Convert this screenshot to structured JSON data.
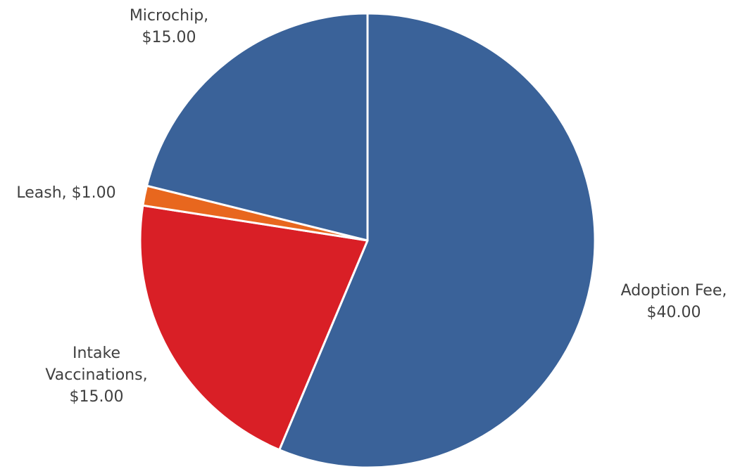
{
  "chart_data": {
    "type": "pie",
    "title": "",
    "start": "top",
    "direction": "clockwise",
    "slices": [
      {
        "category": "Adoption Fee",
        "value": 40.0,
        "label": "Adoption Fee, $40.00",
        "label_lines": [
          "Adoption Fee,",
          "$40.00"
        ],
        "color": "#3A6299"
      },
      {
        "category": "Intake Vaccinations",
        "value": 15.0,
        "label": "Intake Vaccinations, $15.00",
        "label_lines": [
          "Intake",
          "Vaccinations,",
          "$15.00"
        ],
        "color": "#D91F26"
      },
      {
        "category": "Leash",
        "value": 1.0,
        "label": "Leash, $1.00",
        "label_lines": [
          "Leash, $1.00"
        ],
        "color": "#E8671E"
      },
      {
        "category": "Microchip",
        "value": 15.0,
        "label": "Microchip, $15.00",
        "label_lines": [
          "Microchip,",
          "$15.00"
        ],
        "color": "#3A6299"
      }
    ]
  }
}
